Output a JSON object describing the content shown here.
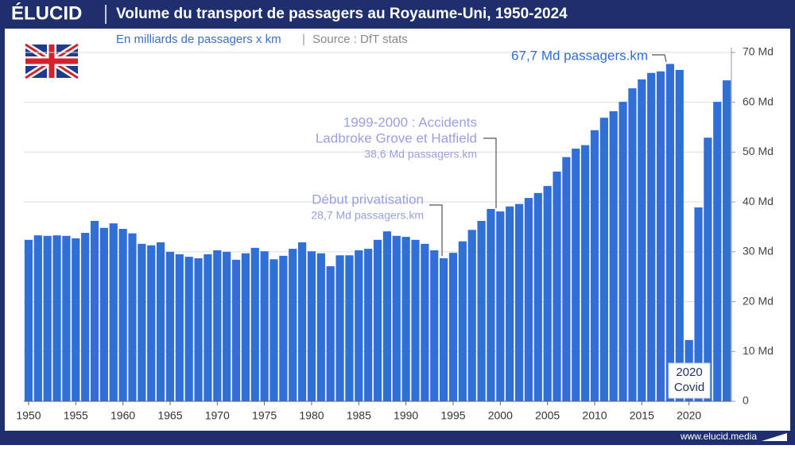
{
  "brand": "ÉLUCID",
  "footer": "www.elucid.media",
  "chart_data": {
    "type": "bar",
    "title": "Volume du transport de passagers au Royaume-Uni, 1950-2024",
    "subtitle": "En milliards de passagers x km",
    "source": "Source : DfT stats",
    "x": [
      1950,
      1951,
      1952,
      1953,
      1954,
      1955,
      1956,
      1957,
      1958,
      1959,
      1960,
      1961,
      1962,
      1963,
      1964,
      1965,
      1966,
      1967,
      1968,
      1969,
      1970,
      1971,
      1972,
      1973,
      1974,
      1975,
      1976,
      1977,
      1978,
      1979,
      1980,
      1981,
      1982,
      1983,
      1984,
      1985,
      1986,
      1987,
      1988,
      1989,
      1990,
      1991,
      1992,
      1993,
      1994,
      1995,
      1996,
      1997,
      1998,
      1999,
      2000,
      2001,
      2002,
      2003,
      2004,
      2005,
      2006,
      2007,
      2008,
      2009,
      2010,
      2011,
      2012,
      2013,
      2014,
      2015,
      2016,
      2017,
      2018,
      2019,
      2020,
      2021,
      2022,
      2023,
      2024
    ],
    "values": [
      32.4,
      33.3,
      33.2,
      33.3,
      33.2,
      32.7,
      33.8,
      36.2,
      34.8,
      35.7,
      34.6,
      33.7,
      31.6,
      31.3,
      31.9,
      30.0,
      29.5,
      29.0,
      28.7,
      29.5,
      30.3,
      30.0,
      28.4,
      29.7,
      30.8,
      30.1,
      28.5,
      29.2,
      30.6,
      31.9,
      30.1,
      29.7,
      27.1,
      29.3,
      29.3,
      30.3,
      30.6,
      32.4,
      34.1,
      33.2,
      33.0,
      32.4,
      31.6,
      30.3,
      28.7,
      29.8,
      32.1,
      34.4,
      36.2,
      38.6,
      38.1,
      39.1,
      39.6,
      40.8,
      41.8,
      43.2,
      46.1,
      49.0,
      50.7,
      51.4,
      54.4,
      56.9,
      58.2,
      60.1,
      62.8,
      64.6,
      65.9,
      66.2,
      67.7,
      66.5,
      12.3,
      38.9,
      52.9,
      60.1,
      64.4
    ],
    "color": "#2f6fd6",
    "xlim": [
      1949.5,
      2025
    ],
    "xticks": [
      1950,
      1955,
      1960,
      1965,
      1970,
      1975,
      1980,
      1985,
      1990,
      1995,
      2000,
      2005,
      2010,
      2015,
      2020
    ],
    "ylim": [
      0,
      70
    ],
    "yticks": [
      0,
      {
        "value": 10,
        "label": "10 Md"
      },
      {
        "value": 20,
        "label": "20 Md"
      },
      {
        "value": 30,
        "label": "30 Md"
      },
      {
        "value": 40,
        "label": "40 Md"
      },
      {
        "value": 50,
        "label": "50 Md"
      },
      {
        "value": 60,
        "label": "60 Md"
      },
      {
        "value": 70,
        "label": "70 Md"
      }
    ],
    "grid": true,
    "annotations": [
      {
        "lines": [
          "67,7 Md passagers.km"
        ]
      },
      {
        "lines": [
          "1999-2000 : Accidents",
          "Ladbroke Grove et Hatfield",
          "38,6 Md passagers.km"
        ]
      },
      {
        "lines": [
          "Début privatisation",
          "28,7 Md passagers.km"
        ]
      },
      {
        "lines": [
          "2020",
          "Covid"
        ]
      }
    ]
  }
}
